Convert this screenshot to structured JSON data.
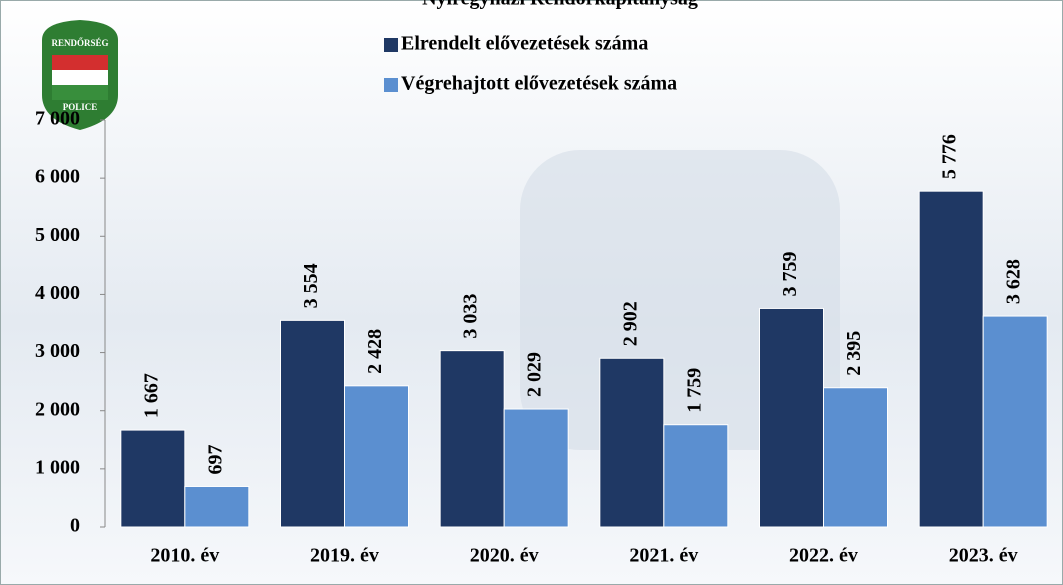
{
  "chart_data": {
    "type": "bar",
    "title": "Nyíregyházi Rendőrkapitányság",
    "logo_texts": [
      "RENDŐRSÉG",
      "POLICE"
    ],
    "categories": [
      "2010. év",
      "2019. év",
      "2020. év",
      "2021. év",
      "2022. év",
      "2023. év"
    ],
    "series": [
      {
        "name": "Elrendelt elővezetések száma",
        "color": "#1f3864",
        "values": [
          1667,
          3554,
          3033,
          2902,
          3759,
          5776
        ],
        "value_labels": [
          "1 667",
          "3 554",
          "3 033",
          "2 902",
          "3 759",
          "5 776"
        ]
      },
      {
        "name": "Végrehajtott elővezetések száma",
        "color": "#5b8fd0",
        "values": [
          697,
          2428,
          2029,
          1759,
          2395,
          3628
        ],
        "value_labels": [
          "697",
          "2 428",
          "2 029",
          "1 759",
          "2 395",
          "3 628"
        ]
      }
    ],
    "ylim": [
      0,
      7000
    ],
    "yticks": [
      0,
      {
        "value": 1000,
        "label": "1 000"
      },
      {
        "value": 2000,
        "label": "2 000"
      },
      {
        "value": 3000,
        "label": "3 000"
      },
      {
        "value": 4000,
        "label": "4 000"
      },
      {
        "value": 5000,
        "label": "5 000"
      },
      {
        "value": 6000,
        "label": "6 000"
      },
      {
        "value": 7000,
        "label": "7 000"
      }
    ],
    "grid": false
  }
}
